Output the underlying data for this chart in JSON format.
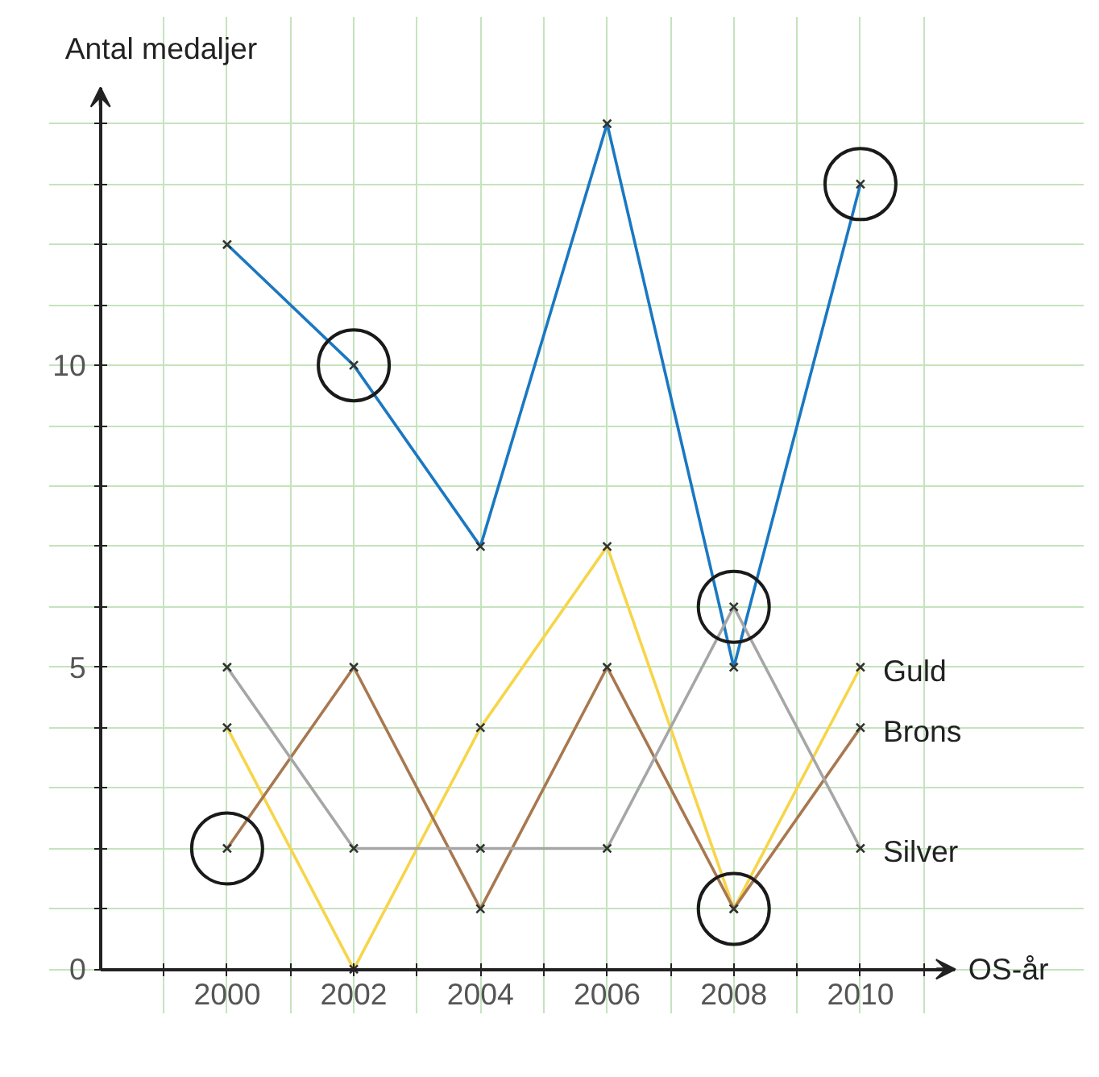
{
  "chart_data": {
    "type": "line",
    "xlabel": "OS-år",
    "ylabel": "Antal medaljer",
    "x": [
      2000,
      2002,
      2004,
      2006,
      2008,
      2010
    ],
    "series": [
      {
        "color": "#1a78c2",
        "values": [
          12,
          10,
          7,
          14,
          5,
          13
        ]
      },
      {
        "name": "Guld",
        "color": "#f7d54a",
        "values": [
          4,
          0,
          4,
          7,
          1,
          5
        ]
      },
      {
        "name": "Brons",
        "color": "#a87850",
        "values": [
          2,
          5,
          1,
          5,
          1,
          4
        ]
      },
      {
        "name": "Silver",
        "color": "#a6a6a6",
        "values": [
          5,
          2,
          2,
          2,
          6,
          2
        ]
      },
      {
        "type": "scatter",
        "marker": "circle",
        "color": "#1a1a1a",
        "x": [
          2000,
          2002,
          2008,
          2008,
          2010
        ],
        "values": [
          2,
          10,
          6,
          1,
          13
        ]
      }
    ],
    "marker": "cross",
    "grid": true,
    "xlim": [
      1998,
      2011.5
    ],
    "ylim": [
      0,
      14.6
    ],
    "xticks": [
      {
        "value": 1999,
        "label": null
      },
      2000,
      {
        "value": 2001,
        "label": null
      },
      2002,
      {
        "value": 2003,
        "label": null
      },
      2004,
      {
        "value": 2005,
        "label": null
      },
      2006,
      {
        "value": 2007,
        "label": null
      },
      2008,
      {
        "value": 2009,
        "label": null
      },
      2010,
      {
        "value": 2011,
        "label": null
      }
    ],
    "yticks": [
      0,
      {
        "value": 1,
        "label": null
      },
      {
        "value": 2,
        "label": null
      },
      {
        "value": 3,
        "label": null
      },
      {
        "value": 4,
        "label": null
      },
      5,
      {
        "value": 6,
        "label": null
      },
      {
        "value": 7,
        "label": null
      },
      {
        "value": 8,
        "label": null
      },
      {
        "value": 9,
        "label": null
      },
      10,
      {
        "value": 11,
        "label": null
      },
      {
        "value": 12,
        "label": null
      },
      {
        "value": 13,
        "label": null
      },
      {
        "value": 14,
        "label": null
      }
    ]
  }
}
